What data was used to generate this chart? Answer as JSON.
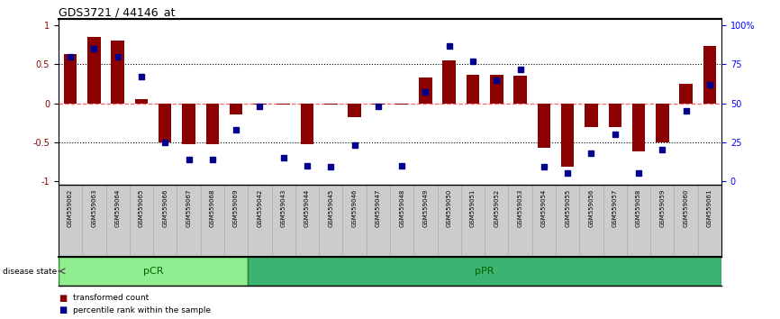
{
  "title": "GDS3721 / 44146_at",
  "samples": [
    "GSM559062",
    "GSM559063",
    "GSM559064",
    "GSM559065",
    "GSM559066",
    "GSM559067",
    "GSM559068",
    "GSM559069",
    "GSM559042",
    "GSM559043",
    "GSM559044",
    "GSM559045",
    "GSM559046",
    "GSM559047",
    "GSM559048",
    "GSM559049",
    "GSM559050",
    "GSM559051",
    "GSM559052",
    "GSM559053",
    "GSM559054",
    "GSM559055",
    "GSM559056",
    "GSM559057",
    "GSM559058",
    "GSM559059",
    "GSM559060",
    "GSM559061"
  ],
  "bar_values": [
    0.63,
    0.85,
    0.8,
    0.05,
    -0.5,
    -0.52,
    -0.52,
    -0.14,
    -0.02,
    -0.02,
    -0.53,
    -0.02,
    -0.18,
    -0.02,
    -0.02,
    0.33,
    0.55,
    0.37,
    0.37,
    0.35,
    -0.57,
    -0.82,
    -0.3,
    -0.3,
    -0.62,
    -0.5,
    0.25,
    0.73
  ],
  "percentile_values": [
    0.6,
    0.7,
    0.6,
    0.34,
    -0.5,
    -0.72,
    -0.72,
    -0.34,
    -0.04,
    -0.7,
    -0.8,
    -0.82,
    -0.54,
    -0.04,
    -0.8,
    0.14,
    0.74,
    0.54,
    0.3,
    0.44,
    -0.82,
    -0.9,
    -0.64,
    -0.4,
    -0.9,
    -0.6,
    -0.1,
    0.24
  ],
  "pcr_count": 8,
  "ppr_count": 20,
  "bar_color": "#8B0000",
  "percentile_color": "#00008B",
  "pcr_color": "#90EE90",
  "ppr_color": "#3CB371",
  "zero_line_color": "#FF6666",
  "label_bg_color": "#cccccc",
  "legend_items": [
    "transformed count",
    "percentile rank within the sample"
  ]
}
